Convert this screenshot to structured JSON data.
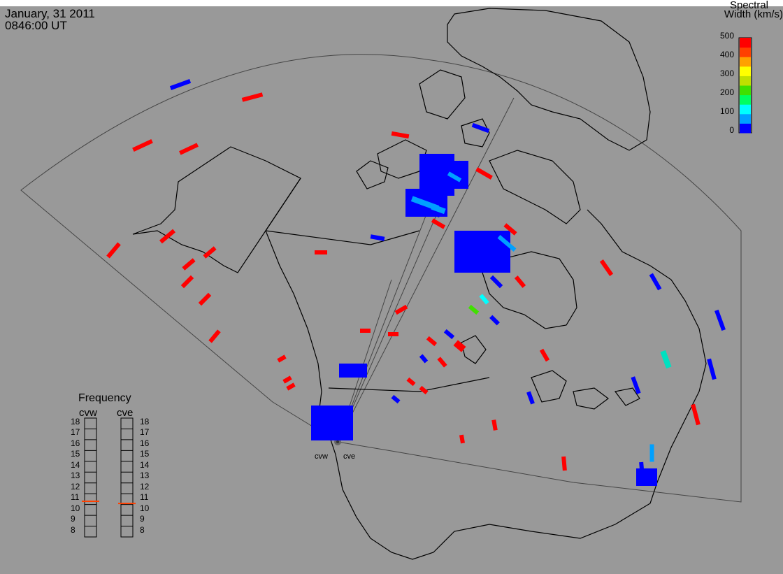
{
  "header": {
    "date": "January, 31 2011",
    "time": "0846:00 UT"
  },
  "colorbar": {
    "title_line1": "Spectral",
    "title_line2": "Width (km/s)",
    "ticks": [
      "500",
      "400",
      "300",
      "200",
      "100",
      "0"
    ],
    "range": [
      0,
      500
    ],
    "colors": [
      "#0000ff",
      "#00a0ff",
      "#00ffff",
      "#00ff60",
      "#40e000",
      "#c0e000",
      "#ffff00",
      "#ffa000",
      "#ff4000",
      "#ff0000"
    ]
  },
  "frequency_panel": {
    "title": "Frequency",
    "radars": [
      "cvw",
      "cve"
    ],
    "scale": [
      "18",
      "17",
      "16",
      "15",
      "14",
      "13",
      "12",
      "11",
      "10",
      "9",
      "8"
    ],
    "cvw_mhz": 10.8,
    "cve_mhz": 10.6,
    "marker_color": "#ff4000"
  },
  "radars": {
    "west": "cvw",
    "east": "cve"
  },
  "colors": {
    "background": "#999999",
    "low_width": "#0000ff",
    "high_width": "#ff0000",
    "coast": "#000000"
  }
}
